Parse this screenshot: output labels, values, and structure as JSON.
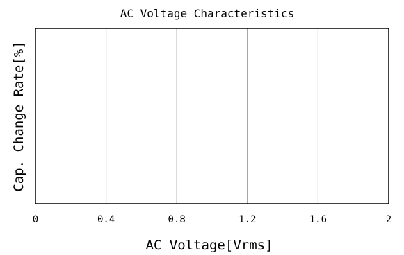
{
  "chart_data": {
    "type": "line",
    "title": "AC Voltage Characteristics",
    "xlabel": "AC Voltage[Vrms]",
    "ylabel": "Cap. Change Rate[%]",
    "xlim": [
      0,
      2
    ],
    "x_ticks": [
      "0",
      "0.4",
      "0.8",
      "1.2",
      "1.6",
      "2"
    ],
    "x_tick_values": [
      0,
      0.4,
      0.8,
      1.2,
      1.6,
      2
    ],
    "y_ticks": [],
    "grid": {
      "vertical": true,
      "horizontal": false
    },
    "series": []
  },
  "colors": {
    "background": "#ffffff",
    "frame": "#000000",
    "grid": "#808080",
    "text": "#000000"
  }
}
